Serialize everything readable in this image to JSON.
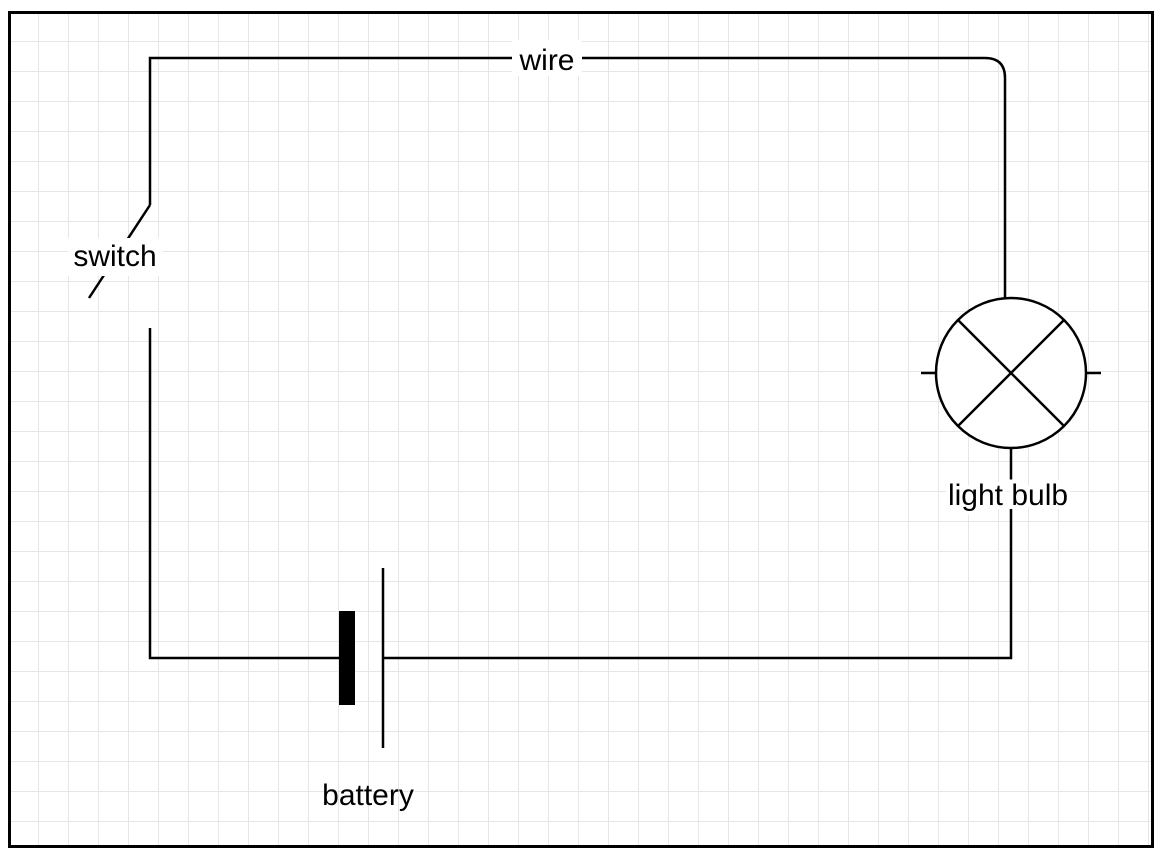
{
  "diagram": {
    "labels": {
      "wire": "wire",
      "switch": "switch",
      "light_bulb": "light bulb",
      "battery": "battery"
    },
    "colors": {
      "stroke": "#000000",
      "grid": "#e6e6e6",
      "background": "#ffffff"
    },
    "components": [
      "wire",
      "switch",
      "light-bulb",
      "battery"
    ]
  }
}
